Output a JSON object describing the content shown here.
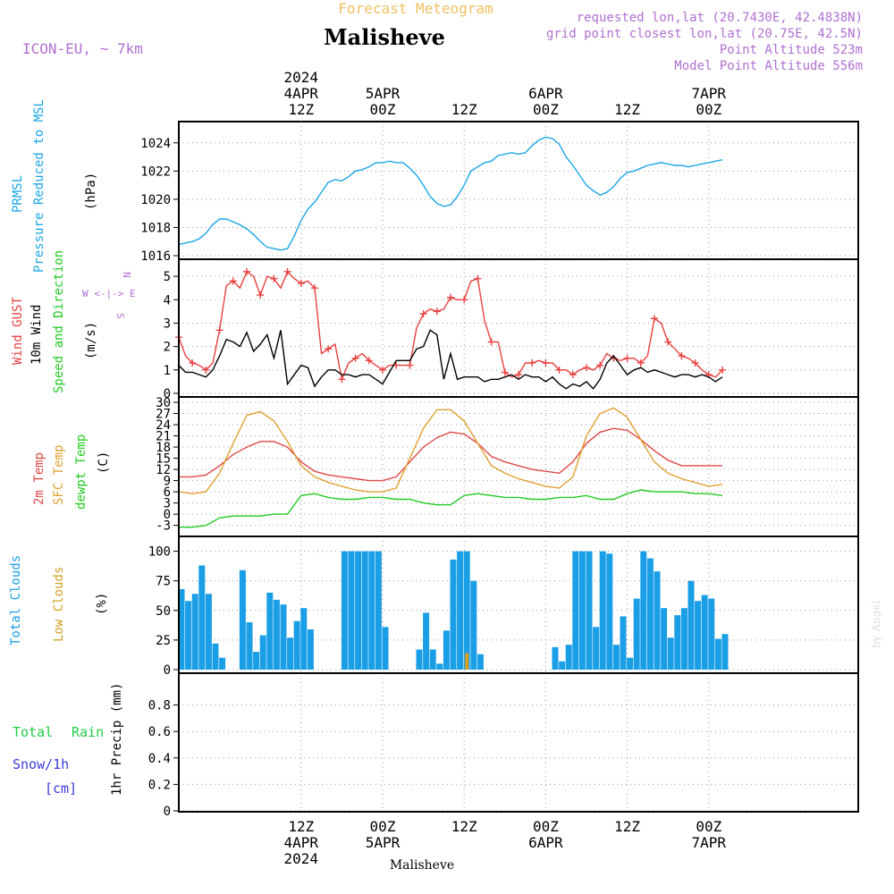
{
  "header": {
    "top_label": "Forecast Meteogram",
    "title": "Malisheve",
    "model": "ICON-EU, ~ 7km",
    "info_lines": [
      "requested lon,lat (20.7430E, 42.4838N)",
      "grid point closest lon,lat (20.75E, 42.5N)",
      "Point Altitude 523m",
      "Model Point Altitude 556m"
    ],
    "bottom_label": "Malisheve",
    "watermark": "by Angel"
  },
  "colors": {
    "pressure": "#1aa6e6",
    "gust": "#e84040",
    "wind": "#000000",
    "temp": "#e04848",
    "sfc": "#e0a030",
    "dew": "#22cc22",
    "clouds": "#1a9ee6",
    "low_clouds": "#d4a020",
    "rain": "#22cc44",
    "snow": "#3a3ae0",
    "header_info": "#b070d0",
    "top_label": "#f0c060"
  },
  "time_axis": {
    "x_range": [
      0,
      100
    ],
    "top_ticks": [
      {
        "x": 18,
        "lines": [
          "2024",
          "4APR",
          "12Z"
        ]
      },
      {
        "x": 30,
        "lines": [
          "5APR",
          "00Z"
        ]
      },
      {
        "x": 42,
        "lines": [
          "12Z"
        ]
      },
      {
        "x": 54,
        "lines": [
          "6APR",
          "00Z"
        ]
      },
      {
        "x": 66,
        "lines": [
          "12Z"
        ]
      },
      {
        "x": 78,
        "lines": [
          "7APR",
          "00Z"
        ]
      }
    ],
    "bottom_ticks": [
      {
        "x": 18,
        "lines": [
          "12Z",
          "4APR",
          "2024"
        ]
      },
      {
        "x": 30,
        "lines": [
          "00Z",
          "5APR"
        ]
      },
      {
        "x": 42,
        "lines": [
          "12Z"
        ]
      },
      {
        "x": 54,
        "lines": [
          "00Z",
          "6APR"
        ]
      },
      {
        "x": 66,
        "lines": [
          "12Z"
        ]
      },
      {
        "x": 78,
        "lines": [
          "00Z",
          "7APR"
        ]
      }
    ]
  },
  "chart_data": [
    {
      "type": "line",
      "panel": "pressure",
      "labels": [
        "PRMSL",
        "Pressure Reduced to MSL",
        "(hPa)"
      ],
      "ylim": [
        1016,
        1025
      ],
      "yticks": [
        1016,
        1018,
        1020,
        1022,
        1024
      ],
      "series": [
        {
          "x": [
            0,
            1,
            2,
            3,
            4,
            5,
            6,
            7,
            8,
            9,
            10,
            11,
            12,
            13,
            14,
            15,
            16,
            17,
            18,
            19,
            20,
            21,
            22,
            23,
            24,
            25,
            26,
            27,
            28,
            29,
            30,
            31,
            32,
            33,
            34,
            35,
            36,
            37,
            38,
            39,
            40,
            41,
            42,
            43,
            44,
            45,
            46,
            47,
            48,
            49,
            50,
            51,
            52,
            53,
            54,
            55,
            56,
            57,
            58,
            59,
            60,
            61,
            62,
            63,
            64,
            65,
            66,
            67,
            68,
            69,
            70,
            71,
            72,
            73,
            74,
            75,
            76,
            77,
            78,
            79,
            80
          ],
          "y": [
            1016.8,
            1016.9,
            1017.0,
            1017.2,
            1017.6,
            1018.2,
            1018.6,
            1018.6,
            1018.4,
            1018.2,
            1017.9,
            1017.5,
            1017.0,
            1016.6,
            1016.5,
            1016.4,
            1016.5,
            1017.4,
            1018.5,
            1019.3,
            1019.8,
            1020.5,
            1021.2,
            1021.4,
            1021.3,
            1021.6,
            1022.0,
            1022.1,
            1022.3,
            1022.6,
            1022.6,
            1022.7,
            1022.6,
            1022.6,
            1022.2,
            1021.7,
            1021.0,
            1020.2,
            1019.7,
            1019.5,
            1019.6,
            1020.2,
            1021.0,
            1022.0,
            1022.3,
            1022.6,
            1022.7,
            1023.1,
            1023.2,
            1023.3,
            1023.2,
            1023.3,
            1023.8,
            1024.2,
            1024.4,
            1024.3,
            1023.9,
            1023.0,
            1022.4,
            1021.7,
            1021.0,
            1020.6,
            1020.3,
            1020.5,
            1020.9,
            1021.5,
            1021.9,
            1022.0,
            1022.2,
            1022.4,
            1022.5,
            1022.6,
            1022.5,
            1022.4,
            1022.4,
            1022.3,
            1022.4,
            1022.5,
            1022.6,
            1022.7,
            1022.8
          ]
        }
      ]
    },
    {
      "type": "line",
      "panel": "wind",
      "labels": [
        "Wind GUST",
        "10m Wind",
        "Speed and Direction",
        "(m/s)"
      ],
      "compass": [
        "N",
        "W <-|-> E",
        "S"
      ],
      "ylim": [
        0,
        5.5
      ],
      "yticks": [
        0,
        1,
        2,
        3,
        4,
        5
      ],
      "series": [
        {
          "name": "gust",
          "x": [
            0,
            1,
            2,
            3,
            4,
            5,
            6,
            7,
            8,
            9,
            10,
            11,
            12,
            13,
            14,
            15,
            16,
            17,
            18,
            19,
            20,
            21,
            22,
            23,
            24,
            25,
            26,
            27,
            28,
            29,
            30,
            31,
            32,
            33,
            34,
            35,
            36,
            37,
            38,
            39,
            40,
            41,
            42,
            43,
            44,
            45,
            46,
            47,
            48,
            49,
            50,
            51,
            52,
            53,
            54,
            55,
            56,
            57,
            58,
            59,
            60,
            61,
            62,
            63,
            64,
            65,
            66,
            67,
            68,
            69,
            70,
            71,
            72,
            73,
            74,
            75,
            76,
            77,
            78,
            79,
            80
          ],
          "y": [
            2.4,
            1.6,
            1.3,
            1.2,
            1.0,
            1.3,
            2.7,
            4.6,
            4.8,
            4.5,
            5.2,
            5.0,
            4.2,
            5.0,
            4.9,
            4.5,
            5.2,
            4.9,
            4.7,
            4.8,
            4.5,
            1.7,
            1.9,
            2.1,
            0.6,
            1.3,
            1.5,
            1.7,
            1.4,
            1.2,
            1.0,
            1.2,
            1.2,
            1.2,
            1.2,
            2.8,
            3.4,
            3.6,
            3.5,
            3.6,
            4.1,
            4.0,
            4.0,
            4.8,
            4.9,
            3.1,
            2.2,
            2.2,
            0.9,
            0.7,
            0.8,
            1.3,
            1.3,
            1.4,
            1.3,
            1.3,
            1.0,
            1.0,
            0.8,
            1.0,
            1.1,
            1.0,
            1.2,
            1.7,
            1.5,
            1.4,
            1.5,
            1.5,
            1.3,
            1.6,
            3.2,
            3.0,
            2.2,
            1.9,
            1.6,
            1.5,
            1.3,
            1.0,
            0.8,
            0.7,
            1.0
          ]
        },
        {
          "name": "wind",
          "x": [
            0,
            1,
            2,
            3,
            4,
            5,
            6,
            7,
            8,
            9,
            10,
            11,
            12,
            13,
            14,
            15,
            16,
            17,
            18,
            19,
            20,
            21,
            22,
            23,
            24,
            25,
            26,
            27,
            28,
            29,
            30,
            31,
            32,
            33,
            34,
            35,
            36,
            37,
            38,
            39,
            40,
            41,
            42,
            43,
            44,
            45,
            46,
            47,
            48,
            49,
            50,
            51,
            52,
            53,
            54,
            55,
            56,
            57,
            58,
            59,
            60,
            61,
            62,
            63,
            64,
            65,
            66,
            67,
            68,
            69,
            70,
            71,
            72,
            73,
            74,
            75,
            76,
            77,
            78,
            79,
            80
          ],
          "y": [
            1.2,
            0.9,
            0.9,
            0.8,
            0.7,
            1.0,
            1.6,
            2.3,
            2.2,
            2.0,
            2.6,
            1.8,
            2.1,
            2.5,
            1.5,
            2.7,
            0.4,
            0.8,
            1.2,
            1.1,
            0.3,
            0.7,
            1.0,
            1.0,
            0.8,
            0.8,
            0.7,
            0.8,
            0.8,
            0.6,
            0.4,
            0.9,
            1.4,
            1.4,
            1.4,
            1.9,
            2.0,
            2.7,
            2.5,
            0.6,
            1.7,
            0.6,
            0.7,
            0.7,
            0.7,
            0.5,
            0.6,
            0.6,
            0.7,
            0.8,
            0.6,
            0.8,
            0.7,
            0.7,
            0.5,
            0.7,
            0.4,
            0.2,
            0.4,
            0.3,
            0.5,
            0.2,
            0.6,
            1.3,
            1.6,
            1.2,
            0.8,
            1.0,
            1.1,
            0.9,
            1.0,
            0.9,
            0.8,
            0.7,
            0.8,
            0.8,
            0.7,
            0.8,
            0.7,
            0.5,
            0.7
          ]
        }
      ]
    },
    {
      "type": "line",
      "panel": "temperature",
      "labels": [
        "2m Temp",
        "SFC Temp",
        "dewpt Temp",
        "(C)"
      ],
      "ylim": [
        -5,
        30
      ],
      "yticks": [
        -3,
        0,
        3,
        6,
        9,
        12,
        15,
        18,
        21,
        24,
        27,
        30
      ],
      "series": [
        {
          "name": "2m",
          "x": [
            0,
            2,
            4,
            6,
            8,
            10,
            12,
            14,
            16,
            18,
            20,
            22,
            24,
            26,
            28,
            30,
            32,
            34,
            36,
            38,
            40,
            42,
            44,
            46,
            48,
            50,
            52,
            54,
            56,
            58,
            60,
            62,
            64,
            66,
            68,
            70,
            72,
            74,
            76,
            78,
            80
          ],
          "y": [
            10,
            10,
            10.5,
            13,
            16,
            18,
            19.5,
            19.5,
            18,
            14,
            11.5,
            10.5,
            10,
            9.5,
            9,
            9,
            10,
            14,
            18,
            20.5,
            22,
            21.5,
            19,
            15.5,
            14,
            13,
            12,
            11.5,
            11,
            14,
            19,
            22,
            23,
            22.5,
            20,
            17,
            14.5,
            13,
            13,
            13,
            13
          ]
        },
        {
          "name": "sfc",
          "x": [
            0,
            2,
            4,
            6,
            8,
            10,
            12,
            14,
            16,
            18,
            20,
            22,
            24,
            26,
            28,
            30,
            32,
            34,
            36,
            38,
            40,
            42,
            44,
            46,
            48,
            50,
            52,
            54,
            56,
            58,
            60,
            62,
            64,
            66,
            68,
            70,
            72,
            74,
            76,
            78,
            80
          ],
          "y": [
            6,
            5.5,
            6,
            11,
            19,
            26.5,
            27.5,
            25,
            19.5,
            13,
            10,
            8.5,
            7.5,
            6.5,
            6,
            6,
            7,
            15,
            23,
            28,
            28,
            25,
            19,
            13,
            11,
            9.5,
            8.5,
            7.5,
            7,
            10,
            21,
            27,
            28.5,
            26,
            20,
            14,
            11,
            9.5,
            8.5,
            7.5,
            8
          ]
        },
        {
          "name": "dew",
          "x": [
            0,
            2,
            4,
            6,
            8,
            10,
            12,
            14,
            16,
            18,
            20,
            22,
            24,
            26,
            28,
            30,
            32,
            34,
            36,
            38,
            40,
            42,
            44,
            46,
            48,
            50,
            52,
            54,
            56,
            58,
            60,
            62,
            64,
            66,
            68,
            70,
            72,
            74,
            76,
            78,
            80
          ],
          "y": [
            -3.5,
            -3.5,
            -3,
            -1,
            -0.5,
            -0.5,
            -0.5,
            0,
            0,
            5,
            5.5,
            4.5,
            4,
            4,
            4.5,
            4.5,
            4,
            4,
            3,
            2.5,
            2.5,
            5,
            5.5,
            5,
            4.5,
            4.5,
            4,
            4,
            4.5,
            4.5,
            5,
            4,
            4,
            5.5,
            6.5,
            6,
            6,
            6,
            5.5,
            5.5,
            5
          ]
        }
      ]
    },
    {
      "type": "bar",
      "panel": "clouds",
      "labels": [
        "Total Clouds",
        "Low Clouds",
        "(%)"
      ],
      "ylim": [
        0,
        105
      ],
      "yticks": [
        0,
        25,
        50,
        75,
        100
      ],
      "series": [
        {
          "name": "total",
          "x": [
            0,
            1,
            2,
            3,
            4,
            5,
            6,
            7,
            8,
            9,
            10,
            11,
            12,
            13,
            14,
            15,
            16,
            17,
            18,
            19,
            20,
            21,
            22,
            23,
            24,
            25,
            26,
            27,
            28,
            29,
            30,
            31,
            32,
            33,
            34,
            35,
            36,
            37,
            38,
            39,
            40,
            41,
            42,
            43,
            44,
            45,
            46,
            47,
            48,
            49,
            50,
            51,
            52,
            53,
            54,
            55,
            56,
            57,
            58,
            59,
            60,
            61,
            62,
            63,
            64,
            65,
            66,
            67,
            68,
            69,
            70,
            71,
            72,
            73,
            74,
            75,
            76,
            77,
            78,
            79,
            80
          ],
          "y": [
            68,
            58,
            64,
            88,
            64,
            22,
            10,
            0,
            0,
            84,
            40,
            15,
            29,
            65,
            59,
            55,
            27,
            41,
            52,
            34,
            0,
            0,
            0,
            0,
            100,
            100,
            100,
            100,
            100,
            100,
            36,
            0,
            0,
            0,
            0,
            17,
            48,
            17,
            5,
            33,
            93,
            100,
            100,
            75,
            13,
            0,
            0,
            0,
            0,
            0,
            0,
            0,
            0,
            0,
            0,
            19,
            7,
            21,
            100,
            100,
            100,
            36,
            100,
            98,
            21,
            45,
            10,
            60,
            100,
            94,
            83,
            52,
            27,
            46,
            52,
            75,
            58,
            63,
            60,
            26,
            30
          ]
        },
        {
          "name": "low",
          "x": [
            42
          ],
          "y": [
            14
          ]
        }
      ]
    },
    {
      "type": "bar",
      "panel": "precip",
      "labels": [
        "Total",
        "Rain",
        "Snow/1h",
        "[cm]",
        "1hr Precip (mm)"
      ],
      "ylim": [
        0,
        1
      ],
      "yticks": [
        0,
        0.2,
        0.4,
        0.6,
        0.8
      ],
      "series": [
        {
          "name": "rain",
          "x": [],
          "y": []
        }
      ]
    }
  ]
}
